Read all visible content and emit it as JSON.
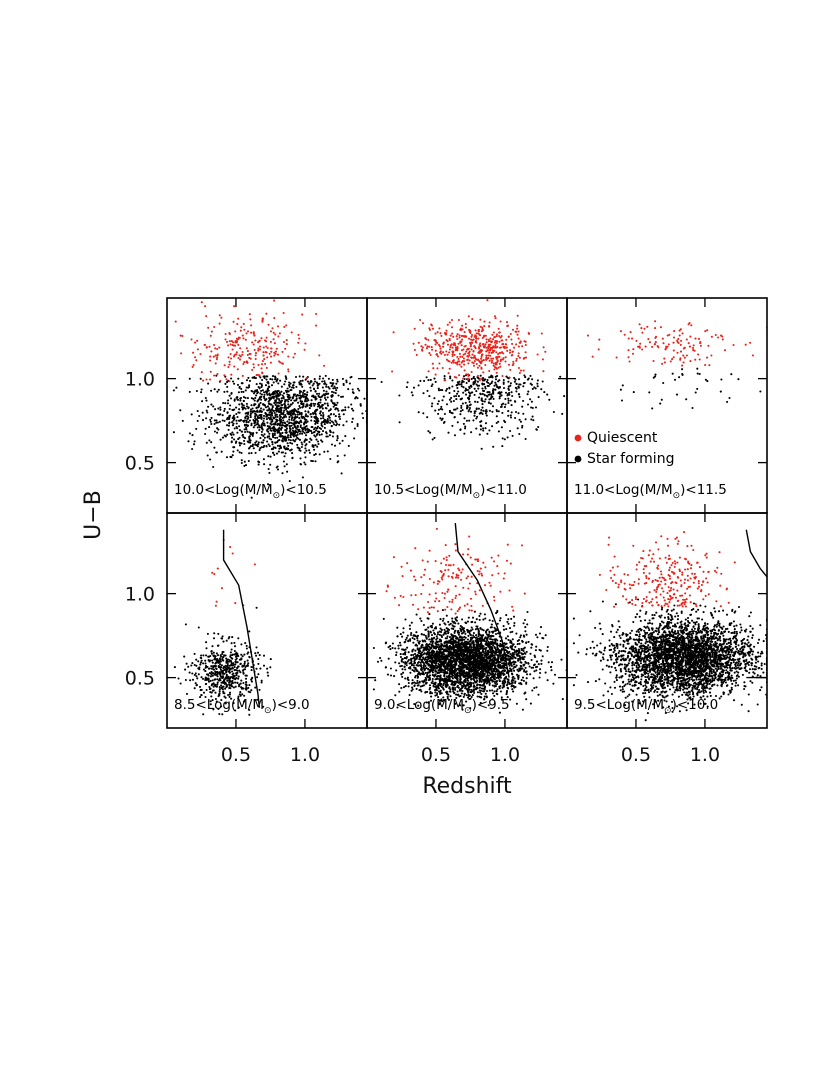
{
  "chart_data": {
    "type": "scatter",
    "xlabel": "Redshift",
    "ylabel": "U−B",
    "x_ticks": [
      0.5,
      1.0
    ],
    "x_tick_labels": [
      "0.5",
      "1.0"
    ],
    "y_ticks": [
      0.5,
      1.0
    ],
    "y_tick_labels": [
      "0.5",
      "1.0"
    ],
    "xlim": [
      0.0,
      1.45
    ],
    "ylim": [
      0.2,
      1.48
    ],
    "legend": {
      "placement": "inside top-right panel, lower-left",
      "entries": [
        {
          "name": "Quiescent",
          "color": "#e8241b"
        },
        {
          "name": "Star forming",
          "color": "#000000"
        }
      ]
    },
    "colors": {
      "quiescent": "#e8241b",
      "star_forming": "#000000"
    },
    "panels": [
      {
        "label_pre": "10.0<Log(M/M",
        "label_post": ")<10.5",
        "row": 0,
        "col": 0,
        "quiescent": {
          "n": 240,
          "x_center": 0.58,
          "x_spread": 0.2,
          "y_center": 1.18,
          "y_spread": 0.1,
          "y_min": 0.98
        },
        "star_forming": {
          "n": 1500,
          "x_center": 0.82,
          "x_spread": 0.25,
          "y_center": 0.78,
          "y_spread": 0.13,
          "y_max": 1.02
        }
      },
      {
        "label_pre": "10.5<Log(M/M",
        "label_post": ")<11.0",
        "row": 0,
        "col": 1,
        "quiescent": {
          "n": 500,
          "x_center": 0.8,
          "x_spread": 0.2,
          "y_center": 1.18,
          "y_spread": 0.08,
          "y_min": 0.98
        },
        "star_forming": {
          "n": 450,
          "x_center": 0.85,
          "x_spread": 0.22,
          "y_center": 0.9,
          "y_spread": 0.12,
          "y_max": 1.02
        }
      },
      {
        "label_pre": "11.0<Log(M/M",
        "label_post": ")<11.5",
        "row": 0,
        "col": 2,
        "quiescent": {
          "n": 120,
          "x_center": 0.75,
          "x_spread": 0.22,
          "y_center": 1.22,
          "y_spread": 0.07,
          "y_min": 1.05
        },
        "star_forming": {
          "n": 35,
          "x_center": 0.85,
          "x_spread": 0.25,
          "y_center": 0.98,
          "y_spread": 0.1,
          "y_max": 1.06
        }
      },
      {
        "label_pre": "8.5<Log(M/M",
        "label_post": ")<9.0",
        "row": 1,
        "col": 0,
        "quiescent": {
          "n": 12,
          "x_center": 0.45,
          "x_spread": 0.1,
          "y_center": 1.05,
          "y_spread": 0.12,
          "y_min": 0.92
        },
        "star_forming": {
          "n": 550,
          "x_center": 0.42,
          "x_spread": 0.12,
          "y_center": 0.53,
          "y_spread": 0.09,
          "y_max": 0.92
        },
        "curve": [
          [
            0.41,
            1.38
          ],
          [
            0.41,
            1.2
          ],
          [
            0.52,
            1.05
          ],
          [
            0.58,
            0.8
          ],
          [
            0.62,
            0.6
          ],
          [
            0.66,
            0.4
          ],
          [
            0.67,
            0.32
          ]
        ]
      },
      {
        "label_pre": "9.0<Log(M/M",
        "label_post": ")<9.5",
        "row": 1,
        "col": 1,
        "quiescent": {
          "n": 160,
          "x_center": 0.62,
          "x_spread": 0.2,
          "y_center": 1.05,
          "y_spread": 0.12,
          "y_min": 0.88
        },
        "star_forming": {
          "n": 3200,
          "x_center": 0.72,
          "x_spread": 0.22,
          "y_center": 0.6,
          "y_spread": 0.1,
          "y_max": 0.95
        },
        "curve": [
          [
            0.64,
            1.42
          ],
          [
            0.66,
            1.25
          ],
          [
            0.8,
            1.08
          ],
          [
            0.9,
            0.9
          ],
          [
            0.98,
            0.72
          ],
          [
            1.03,
            0.5
          ]
        ]
      },
      {
        "label_pre": "9.5<Log(M/M",
        "label_post": ")<10.0",
        "row": 1,
        "col": 2,
        "quiescent": {
          "n": 260,
          "x_center": 0.72,
          "x_spread": 0.2,
          "y_center": 1.08,
          "y_spread": 0.12,
          "y_min": 0.92
        },
        "star_forming": {
          "n": 3200,
          "x_center": 0.85,
          "x_spread": 0.25,
          "y_center": 0.62,
          "y_spread": 0.11,
          "y_max": 0.97
        },
        "curve": [
          [
            1.3,
            1.38
          ],
          [
            1.33,
            1.25
          ],
          [
            1.4,
            1.15
          ],
          [
            1.45,
            1.1
          ]
        ],
        "hline": [
          [
            1.3,
            0.5
          ],
          [
            1.45,
            0.5
          ]
        ]
      }
    ]
  }
}
